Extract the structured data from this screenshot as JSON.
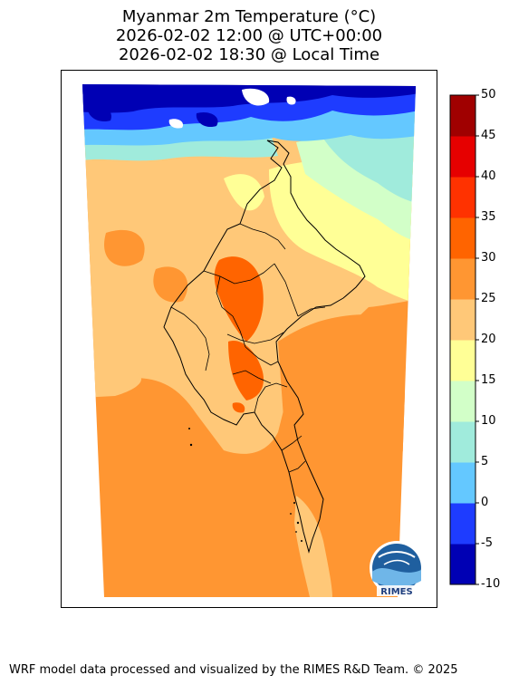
{
  "title": {
    "line1": "Myanmar 2m Temperature (°C)",
    "line2": "2026-02-02 12:00 @ UTC+00:00",
    "line3": "2026-02-02 18:30 @ Local Time"
  },
  "colorbar": {
    "levels": [
      -10,
      -5,
      0,
      5,
      10,
      15,
      20,
      25,
      30,
      35,
      40,
      45,
      50
    ],
    "labels": [
      "50",
      "45",
      "40",
      "35",
      "30",
      "25",
      "20",
      "15",
      "10",
      "5",
      "0",
      "-5",
      "-10"
    ],
    "colors": [
      "#0000b4",
      "#1e3cff",
      "#64c8ff",
      "#a0ebdc",
      "#d2ffc8",
      "#ffff96",
      "#ffc878",
      "#ff9632",
      "#ff6400",
      "#ff3200",
      "#e60000",
      "#a00000"
    ]
  },
  "colors": {
    "cold_deep": "#0000b4",
    "cold": "#1e3cff",
    "cool": "#64c8ff",
    "mild": "#a0ebdc",
    "warm_base": "#ffc878",
    "hot": "#ff9632",
    "hottest": "#ff6400"
  },
  "logo": {
    "text": "RIMES"
  },
  "footer": "WRF model data processed and visualized by the RIMES R&D Team. © 2025"
}
